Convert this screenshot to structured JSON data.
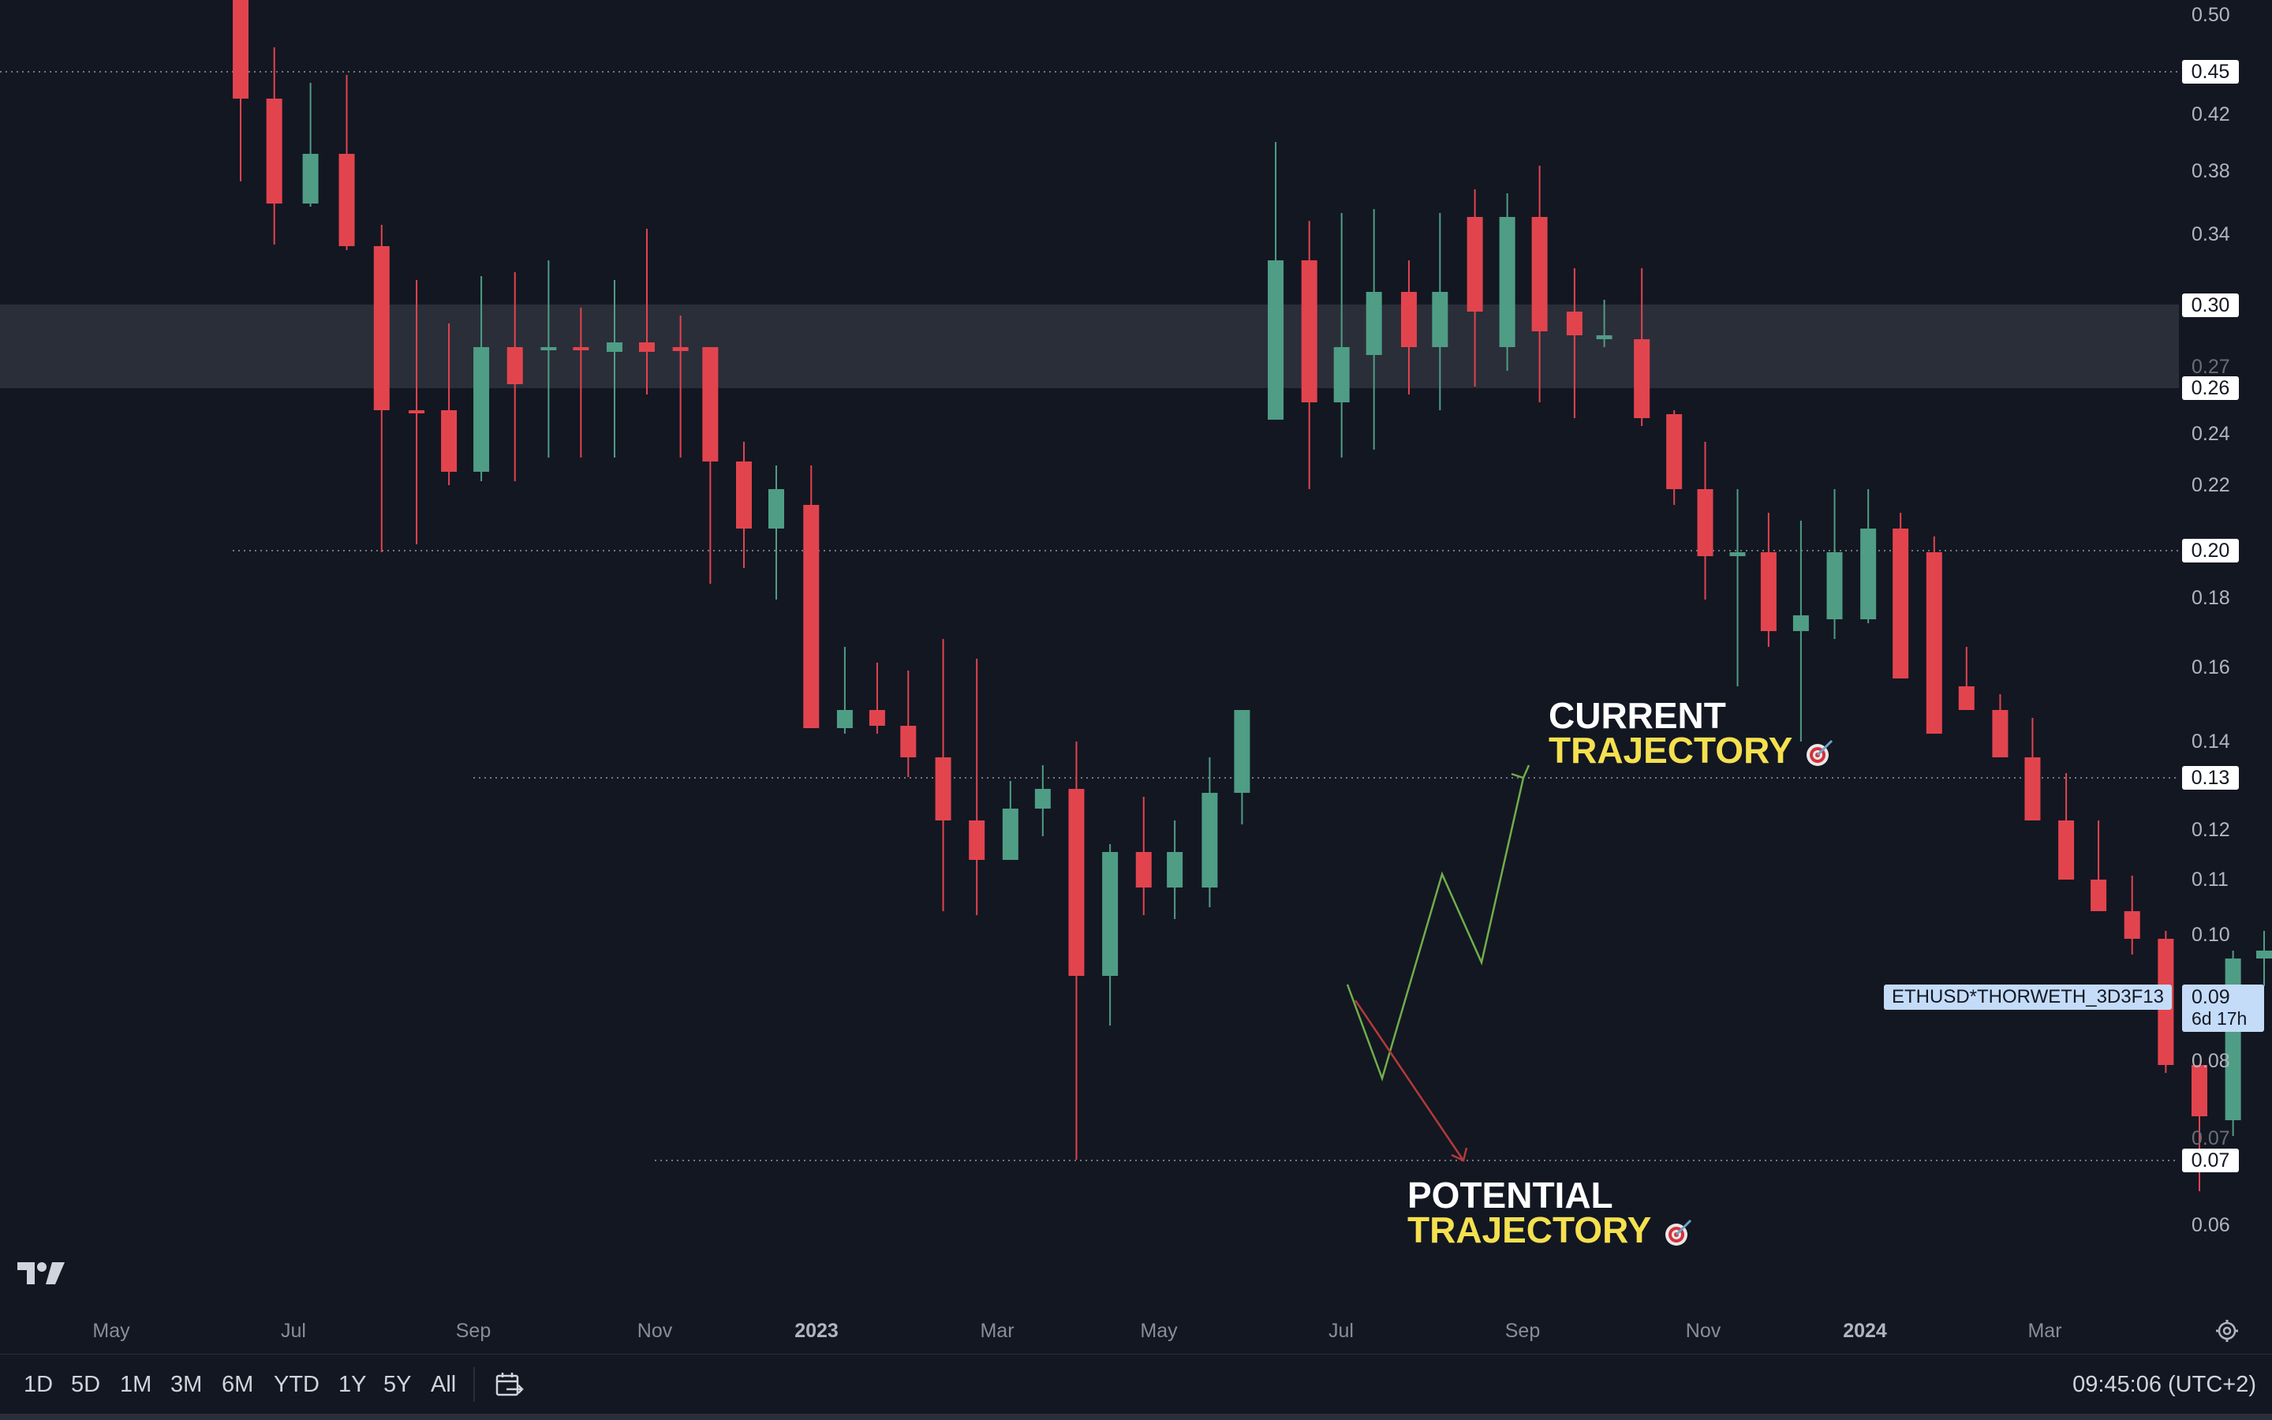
{
  "chart": {
    "symbol": "ETHUSD*THORWETH_3D3F13",
    "current_price": "0.09",
    "countdown": "6d 17h",
    "y_axis_ticks": [
      "0.50",
      "0.42",
      "0.38",
      "0.34",
      "0.27",
      "0.24",
      "0.22",
      "0.18",
      "0.16",
      "0.14",
      "0.12",
      "0.11",
      "0.10",
      "0.08",
      "0.07",
      "0.06"
    ],
    "price_badges": [
      "0.45",
      "0.30",
      "0.26",
      "0.20",
      "0.13",
      "0.07"
    ],
    "x_axis": [
      "May",
      "Jul",
      "Sep",
      "Nov",
      "2023",
      "Mar",
      "May",
      "Jul",
      "Sep",
      "Nov",
      "2024",
      "Mar"
    ],
    "colors": {
      "up": "#4f9d85",
      "down": "#e2444e",
      "background": "#131722",
      "zone": "#2a2e39",
      "highlight": "#f5e04f"
    }
  },
  "annotations": {
    "current": {
      "line1": "CURRENT",
      "line2": "TRAJECTORY"
    },
    "potential": {
      "line1": "POTENTIAL",
      "line2": "TRAJECTORY"
    }
  },
  "icons": {
    "logo": "tradingview-logo-icon",
    "settings": "gear-icon",
    "calendar": "calendar-range-icon",
    "target": "target-dart-icon"
  },
  "bottom_bar": {
    "ranges": [
      "1D",
      "5D",
      "1M",
      "3M",
      "6M",
      "YTD",
      "1Y",
      "5Y",
      "All"
    ],
    "clock": "09:45:06 (UTC+2)"
  }
}
